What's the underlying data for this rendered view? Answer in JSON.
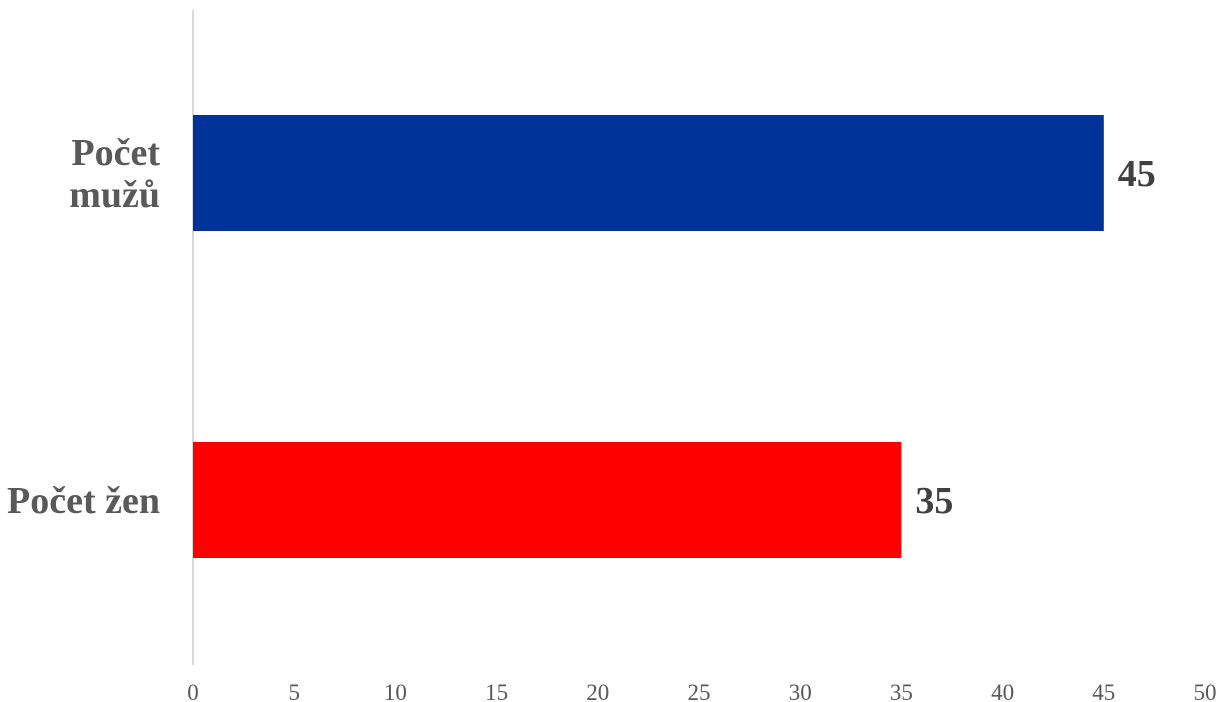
{
  "chart_data": {
    "type": "bar",
    "orientation": "horizontal",
    "categories": [
      "Počet mužů",
      "Počet žen"
    ],
    "category_lines": [
      [
        "Počet",
        "mužů"
      ],
      [
        "Počet žen"
      ]
    ],
    "values": [
      45,
      35
    ],
    "data_labels": [
      "45",
      "35"
    ],
    "colors": [
      "#003399",
      "#ff0000"
    ],
    "xlim": [
      0,
      50
    ],
    "x_ticks": [
      0,
      5,
      10,
      15,
      20,
      25,
      30,
      35,
      40,
      45,
      50
    ],
    "title": "",
    "xlabel": "",
    "ylabel": "",
    "grid": false,
    "legend": "none"
  }
}
